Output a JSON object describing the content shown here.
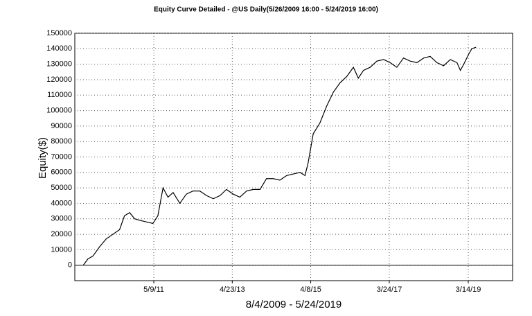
{
  "chart_data": {
    "type": "line",
    "title": "Equity Curve Detailed - @US Daily(5/26/2009 16:00 - 5/24/2019 16:00)",
    "x_label": "8/4/2009 - 5/24/2019",
    "y_label": "Equity($)",
    "grid": true,
    "x": [
      "2009-08-04",
      "2009-09-15",
      "2009-11-01",
      "2010-01-01",
      "2010-03-01",
      "2010-05-01",
      "2010-07-01",
      "2010-08-15",
      "2010-10-01",
      "2010-11-15",
      "2011-01-01",
      "2011-03-01",
      "2011-05-01",
      "2011-06-15",
      "2011-08-01",
      "2011-09-15",
      "2011-11-01",
      "2012-01-01",
      "2012-03-01",
      "2012-05-01",
      "2012-07-01",
      "2012-09-01",
      "2012-11-01",
      "2013-01-01",
      "2013-03-01",
      "2013-05-01",
      "2013-07-01",
      "2013-09-01",
      "2013-11-01",
      "2014-01-01",
      "2014-03-01",
      "2014-05-01",
      "2014-07-01",
      "2014-09-01",
      "2014-11-01",
      "2015-01-01",
      "2015-02-15",
      "2015-03-15",
      "2015-05-01",
      "2015-07-01",
      "2015-09-01",
      "2015-11-01",
      "2016-01-01",
      "2016-03-01",
      "2016-05-01",
      "2016-06-15",
      "2016-08-01",
      "2016-10-01",
      "2016-12-01",
      "2017-02-01",
      "2017-04-01",
      "2017-06-01",
      "2017-08-01",
      "2017-10-01",
      "2017-12-01",
      "2018-02-01",
      "2018-04-01",
      "2018-06-01",
      "2018-08-01",
      "2018-10-01",
      "2018-12-01",
      "2019-01-01",
      "2019-02-01",
      "2019-03-14",
      "2019-04-15",
      "2019-05-24"
    ],
    "series": [
      {
        "name": "Equity",
        "color": "#000000",
        "values": [
          0,
          4000,
          6000,
          12000,
          17000,
          20000,
          23000,
          32000,
          34000,
          30000,
          29000,
          28000,
          27000,
          32000,
          50000,
          44000,
          47000,
          40000,
          46000,
          48000,
          48000,
          45000,
          43000,
          45000,
          49000,
          46000,
          44000,
          48000,
          49000,
          49000,
          56000,
          56000,
          55000,
          58000,
          59000,
          60000,
          58000,
          66000,
          85000,
          92000,
          103000,
          112000,
          118000,
          122000,
          128000,
          121000,
          126000,
          128000,
          132000,
          133000,
          131000,
          128000,
          134000,
          132000,
          131000,
          134000,
          135000,
          131000,
          129000,
          133000,
          131000,
          126000,
          130000,
          136000,
          140000,
          141000
        ]
      }
    ],
    "xlim": [
      "2009-05-19",
      "2020-04-21"
    ],
    "xticks": [
      {
        "value": "2011-05-09",
        "label": "5/9/11"
      },
      {
        "value": "2013-04-23",
        "label": "4/23/13"
      },
      {
        "value": "2015-04-08",
        "label": "4/8/15"
      },
      {
        "value": "2017-03-24",
        "label": "3/24/17"
      },
      {
        "value": "2019-03-14",
        "label": "3/14/19"
      }
    ],
    "ylim": [
      -10000,
      150000
    ],
    "yticks": [
      0,
      10000,
      20000,
      30000,
      40000,
      50000,
      60000,
      70000,
      80000,
      90000,
      100000,
      110000,
      120000,
      130000,
      140000,
      150000
    ]
  }
}
